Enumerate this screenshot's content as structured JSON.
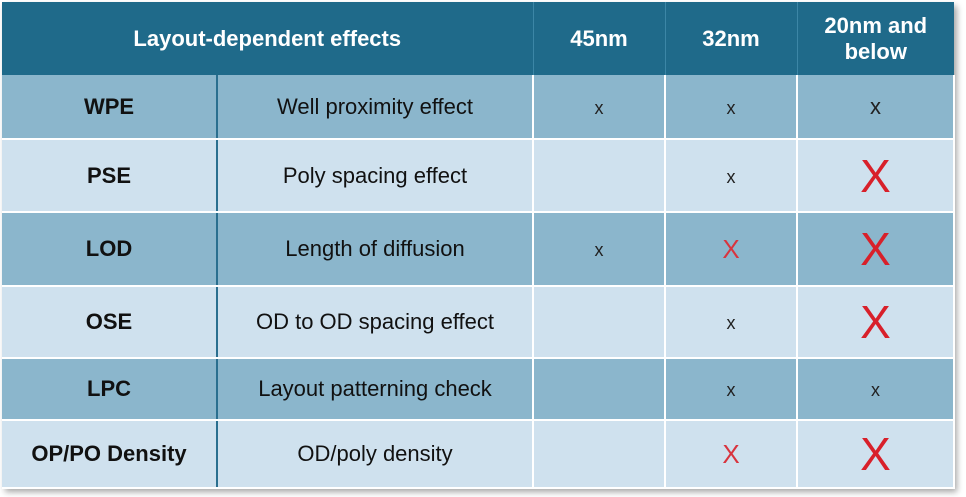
{
  "header": {
    "col_effects": "Layout-dependent effects",
    "col_45": "45nm",
    "col_32": "32nm",
    "col_20_line1": "20nm and",
    "col_20_line2": "below"
  },
  "rows": [
    {
      "abbr": "WPE",
      "name": "Well proximity effect",
      "n45": "x",
      "n32": "x",
      "n20": "x"
    },
    {
      "abbr": "PSE",
      "name": "Poly spacing effect",
      "n45": "",
      "n32": "x",
      "n20": "X"
    },
    {
      "abbr": "LOD",
      "name": "Length of diffusion",
      "n45": "x",
      "n32": "X",
      "n20": "X"
    },
    {
      "abbr": "OSE",
      "name": "OD to OD spacing effect",
      "n45": "",
      "n32": "x",
      "n20": "X"
    },
    {
      "abbr": "LPC",
      "name": "Layout patterning check",
      "n45": "",
      "n32": "x",
      "n20": "x"
    },
    {
      "abbr": "OP/PO Density",
      "name": "OD/poly density",
      "n45": "",
      "n32": "X",
      "n20": "X"
    }
  ],
  "colors": {
    "header_bg": "#1f6a8a",
    "row_dark": "#8bb6cc",
    "row_light": "#cfe1ee",
    "mark_red": "#d8202a"
  }
}
